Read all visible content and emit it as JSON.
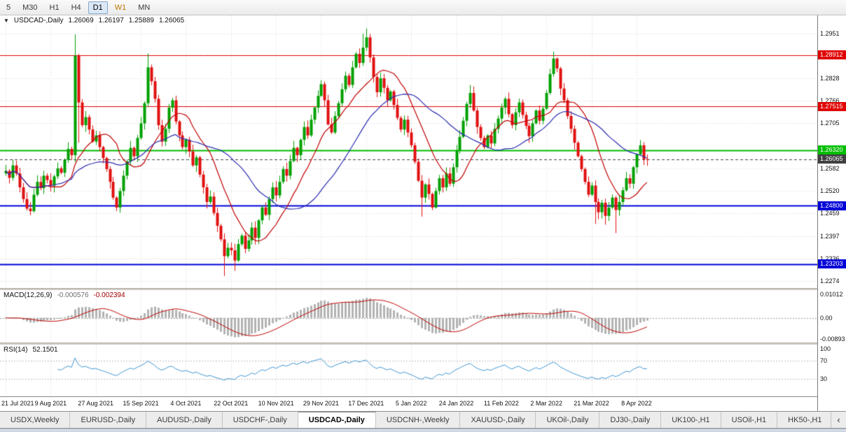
{
  "toolbar": {
    "timeframes": [
      {
        "label": "5"
      },
      {
        "label": "M30"
      },
      {
        "label": "H1"
      },
      {
        "label": "H4"
      },
      {
        "label": "D1",
        "active": true
      },
      {
        "label": "W1",
        "color": "#C07800"
      },
      {
        "label": "MN"
      }
    ]
  },
  "ohlc_header": {
    "icon": "▼",
    "symbol": "USDCAD-,Daily",
    "open": "1.26069",
    "high": "1.26197",
    "low": "1.25889",
    "close": "1.26065"
  },
  "chart_data": {
    "type": "candlestick",
    "symbol": "USDCAD",
    "timeframe": "Daily",
    "y_range": [
      1.2255,
      1.3
    ],
    "y_ticks": [
      {
        "label": "1.2951",
        "price": 1.2951
      },
      {
        "label": "1.2828",
        "price": 1.2828
      },
      {
        "label": "1.2766",
        "price": 1.2766
      },
      {
        "label": "1.2705",
        "price": 1.2705
      },
      {
        "label": "1.2582",
        "price": 1.2582
      },
      {
        "label": "1.2520",
        "price": 1.252
      },
      {
        "label": "1.2459",
        "price": 1.2459
      },
      {
        "label": "1.2397",
        "price": 1.2397
      },
      {
        "label": "1.2336",
        "price": 1.2336
      },
      {
        "label": "1.2274",
        "price": 1.2274
      }
    ],
    "x_ticks": [
      {
        "label": "21 Jul 2021",
        "i": 0
      },
      {
        "label": "9 Aug 2021",
        "i": 13
      },
      {
        "label": "27 Aug 2021",
        "i": 26
      },
      {
        "label": "15 Sep 2021",
        "i": 39
      },
      {
        "label": "4 Oct 2021",
        "i": 52
      },
      {
        "label": "22 Oct 2021",
        "i": 65
      },
      {
        "label": "10 Nov 2021",
        "i": 78
      },
      {
        "label": "29 Nov 2021",
        "i": 91
      },
      {
        "label": "17 Dec 2021",
        "i": 104
      },
      {
        "label": "5 Jan 2022",
        "i": 117
      },
      {
        "label": "24 Jan 2022",
        "i": 130
      },
      {
        "label": "11 Feb 2022",
        "i": 143
      },
      {
        "label": "2 Mar 2022",
        "i": 156
      },
      {
        "label": "21 Mar 2022",
        "i": 169
      },
      {
        "label": "8 Apr 2022",
        "i": 182
      }
    ],
    "levels": [
      {
        "label": "1.28912",
        "price": 1.28912,
        "color": "#E00000",
        "width": 1,
        "style": "solid"
      },
      {
        "label": "1.27515",
        "price": 1.27515,
        "color": "#E00000",
        "width": 1,
        "style": "solid"
      },
      {
        "label": "1.26320",
        "price": 1.2632,
        "color": "#00BE00",
        "width": 2,
        "style": "solid"
      },
      {
        "label": "1.26065",
        "price": 1.26065,
        "color": "#404040",
        "width": 1,
        "style": "dash",
        "is_current": true
      },
      {
        "label": "1.24800",
        "price": 1.248,
        "color": "#0000D8",
        "width": 2,
        "style": "solid"
      },
      {
        "label": "1.23203",
        "price": 1.23203,
        "color": "#0000D8",
        "width": 2,
        "style": "solid"
      }
    ],
    "closes": [
      1.2575,
      1.2556,
      1.259,
      1.2568,
      1.253,
      1.2498,
      1.2472,
      1.2465,
      1.251,
      1.2545,
      1.2528,
      1.2562,
      1.255,
      1.2535,
      1.256,
      1.2582,
      1.257,
      1.2605,
      1.2635,
      1.2618,
      1.289,
      1.2762,
      1.27,
      1.2722,
      1.2688,
      1.2655,
      1.2672,
      1.264,
      1.261,
      1.258,
      1.2545,
      1.2502,
      1.2475,
      1.252,
      1.2562,
      1.2601,
      1.2638,
      1.2615,
      1.2665,
      1.2705,
      1.276,
      1.2858,
      1.282,
      1.2772,
      1.27,
      1.2655,
      1.269,
      1.2748,
      1.2768,
      1.271,
      1.2672,
      1.264,
      1.266,
      1.2628,
      1.259,
      1.2612,
      1.2565,
      1.253,
      1.249,
      1.2505,
      1.246,
      1.2425,
      1.2388,
      1.2342,
      1.2365,
      1.2358,
      1.233,
      1.2375,
      1.2398,
      1.2362,
      1.2385,
      1.242,
      1.2392,
      1.244,
      1.2475,
      1.2455,
      1.2498,
      1.253,
      1.2508,
      1.2545,
      1.258,
      1.2562,
      1.2602,
      1.2638,
      1.2618,
      1.266,
      1.2695,
      1.2672,
      1.2715,
      1.2748,
      1.278,
      1.2812,
      1.2768,
      1.2702,
      1.268,
      1.2725,
      1.276,
      1.2798,
      1.2835,
      1.281,
      1.2858,
      1.2895,
      1.287,
      1.2912,
      1.294,
      1.2885,
      1.2832,
      1.279,
      1.2828,
      1.2802,
      1.2768,
      1.2792,
      1.2755,
      1.272,
      1.2688,
      1.2715,
      1.268,
      1.2645,
      1.26,
      1.2548,
      1.2502,
      1.2538,
      1.2512,
      1.2475,
      1.252,
      1.2555,
      1.253,
      1.2568,
      1.254,
      1.2585,
      1.263,
      1.2668,
      1.2712,
      1.2758,
      1.2788,
      1.274,
      1.2695,
      1.2665,
      1.264,
      1.2672,
      1.265,
      1.269,
      1.2718,
      1.2748,
      1.2772,
      1.273,
      1.27,
      1.2735,
      1.2762,
      1.2728,
      1.2698,
      1.267,
      1.2705,
      1.274,
      1.2712,
      1.2745,
      1.2788,
      1.284,
      1.2882,
      1.2855,
      1.28,
      1.2768,
      1.2725,
      1.269,
      1.2652,
      1.2615,
      1.258,
      1.2545,
      1.251,
      1.2535,
      1.249,
      1.2462,
      1.2488,
      1.2452,
      1.2475,
      1.2502,
      1.2468,
      1.249,
      1.2522,
      1.2555,
      1.254,
      1.2585,
      1.262,
      1.2645,
      1.2607,
      1.26065
    ],
    "special_wicks": [
      {
        "i": 20,
        "high": 1.2948
      },
      {
        "i": 21,
        "low": 1.2652
      },
      {
        "i": 41,
        "high": 1.2896
      },
      {
        "i": 63,
        "low": 1.2288
      },
      {
        "i": 66,
        "low": 1.2302
      },
      {
        "i": 103,
        "high": 1.295
      },
      {
        "i": 104,
        "high": 1.2964
      },
      {
        "i": 120,
        "low": 1.245
      },
      {
        "i": 134,
        "high": 1.281
      },
      {
        "i": 158,
        "high": 1.2901
      },
      {
        "i": 170,
        "low": 1.243
      },
      {
        "i": 173,
        "low": 1.2428
      },
      {
        "i": 176,
        "low": 1.2405
      }
    ],
    "last_candle": {
      "open": 1.26069,
      "high": 1.26197,
      "low": 1.25889,
      "close": 1.26065
    },
    "indicators": {
      "macd": {
        "name": "MACD(12,26,9)",
        "value_main": "-0.000576",
        "value_signal": "-0.002394",
        "fast": 12,
        "slow": 26,
        "signal": 9,
        "range": [
          -0.0105,
          0.0118
        ],
        "axis": [
          {
            "label": "0.01012",
            "value": 0.01012
          },
          {
            "label": "0.00",
            "value": 0
          },
          {
            "label": "-0.00893",
            "value": -0.00893
          }
        ]
      },
      "rsi": {
        "name": "RSI(14)",
        "value": "52.1501",
        "period": 14,
        "range": [
          0,
          100
        ],
        "levels": [
          70,
          30
        ],
        "axis": [
          {
            "label": "100",
            "value": 100
          },
          {
            "label": "70",
            "value": 70
          },
          {
            "label": "30",
            "value": 30
          }
        ]
      }
    }
  },
  "tabs": {
    "scroll_icon": "‹",
    "items": [
      {
        "label": "USDX,Weekly"
      },
      {
        "label": "EURUSD-,Daily"
      },
      {
        "label": "AUDUSD-,Daily"
      },
      {
        "label": "USDCHF-,Daily"
      },
      {
        "label": "USDCAD-,Daily",
        "active": true
      },
      {
        "label": "USDCNH-,Weekly"
      },
      {
        "label": "XAUUSD-,Daily"
      },
      {
        "label": "UKOil-,Daily"
      },
      {
        "label": "DJ30-,Daily"
      },
      {
        "label": "UK100-,H1"
      },
      {
        "label": "USOil-,H1"
      },
      {
        "label": "HK50-,H1"
      }
    ]
  },
  "colors": {
    "up": "#00A000",
    "down": "#E01010",
    "ma_fast": "#C00000",
    "ma_slow": "#2A2AB0",
    "macd_hist": "#B2B2B2",
    "macd_signal": "#C00000",
    "rsi_line": "#3E96D2",
    "grid": "#D6D6D6"
  }
}
